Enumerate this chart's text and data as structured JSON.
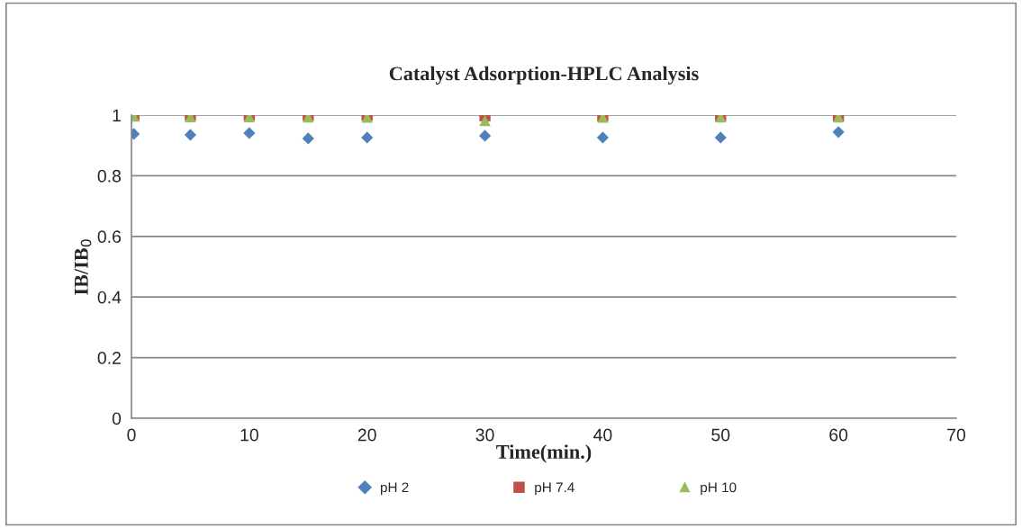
{
  "chart_data": {
    "type": "scatter",
    "title": "Catalyst Adsorption-HPLC Analysis",
    "xlabel": "Time(min.)",
    "ylabel": "IB/IB$_{0}$",
    "x": [
      0.2,
      5,
      10,
      15,
      20,
      30,
      40,
      50,
      60
    ],
    "series": [
      {
        "name": "pH 2",
        "color": "#4f81bd",
        "marker": "diamond",
        "values": [
          0.938,
          0.935,
          0.941,
          0.923,
          0.926,
          0.932,
          0.926,
          0.926,
          0.944
        ]
      },
      {
        "name": "pH 7.4",
        "color": "#c0504d",
        "marker": "square",
        "values": [
          1.0,
          1.0,
          1.0,
          1.0,
          1.0,
          0.998,
          0.998,
          0.998,
          0.998
        ]
      },
      {
        "name": "pH 10",
        "color": "#9bbb59",
        "marker": "triangle",
        "values": [
          0.997,
          0.995,
          0.995,
          0.994,
          0.993,
          0.982,
          0.993,
          0.994,
          0.994
        ]
      }
    ],
    "xlim": [
      0,
      70
    ],
    "xticks": [
      0,
      10,
      20,
      30,
      40,
      50,
      60,
      70
    ],
    "ylim": [
      0,
      1
    ],
    "yticks": [
      0,
      0.2,
      0.4,
      0.6,
      0.8,
      1
    ],
    "grid": "y",
    "legend": "bottom"
  }
}
